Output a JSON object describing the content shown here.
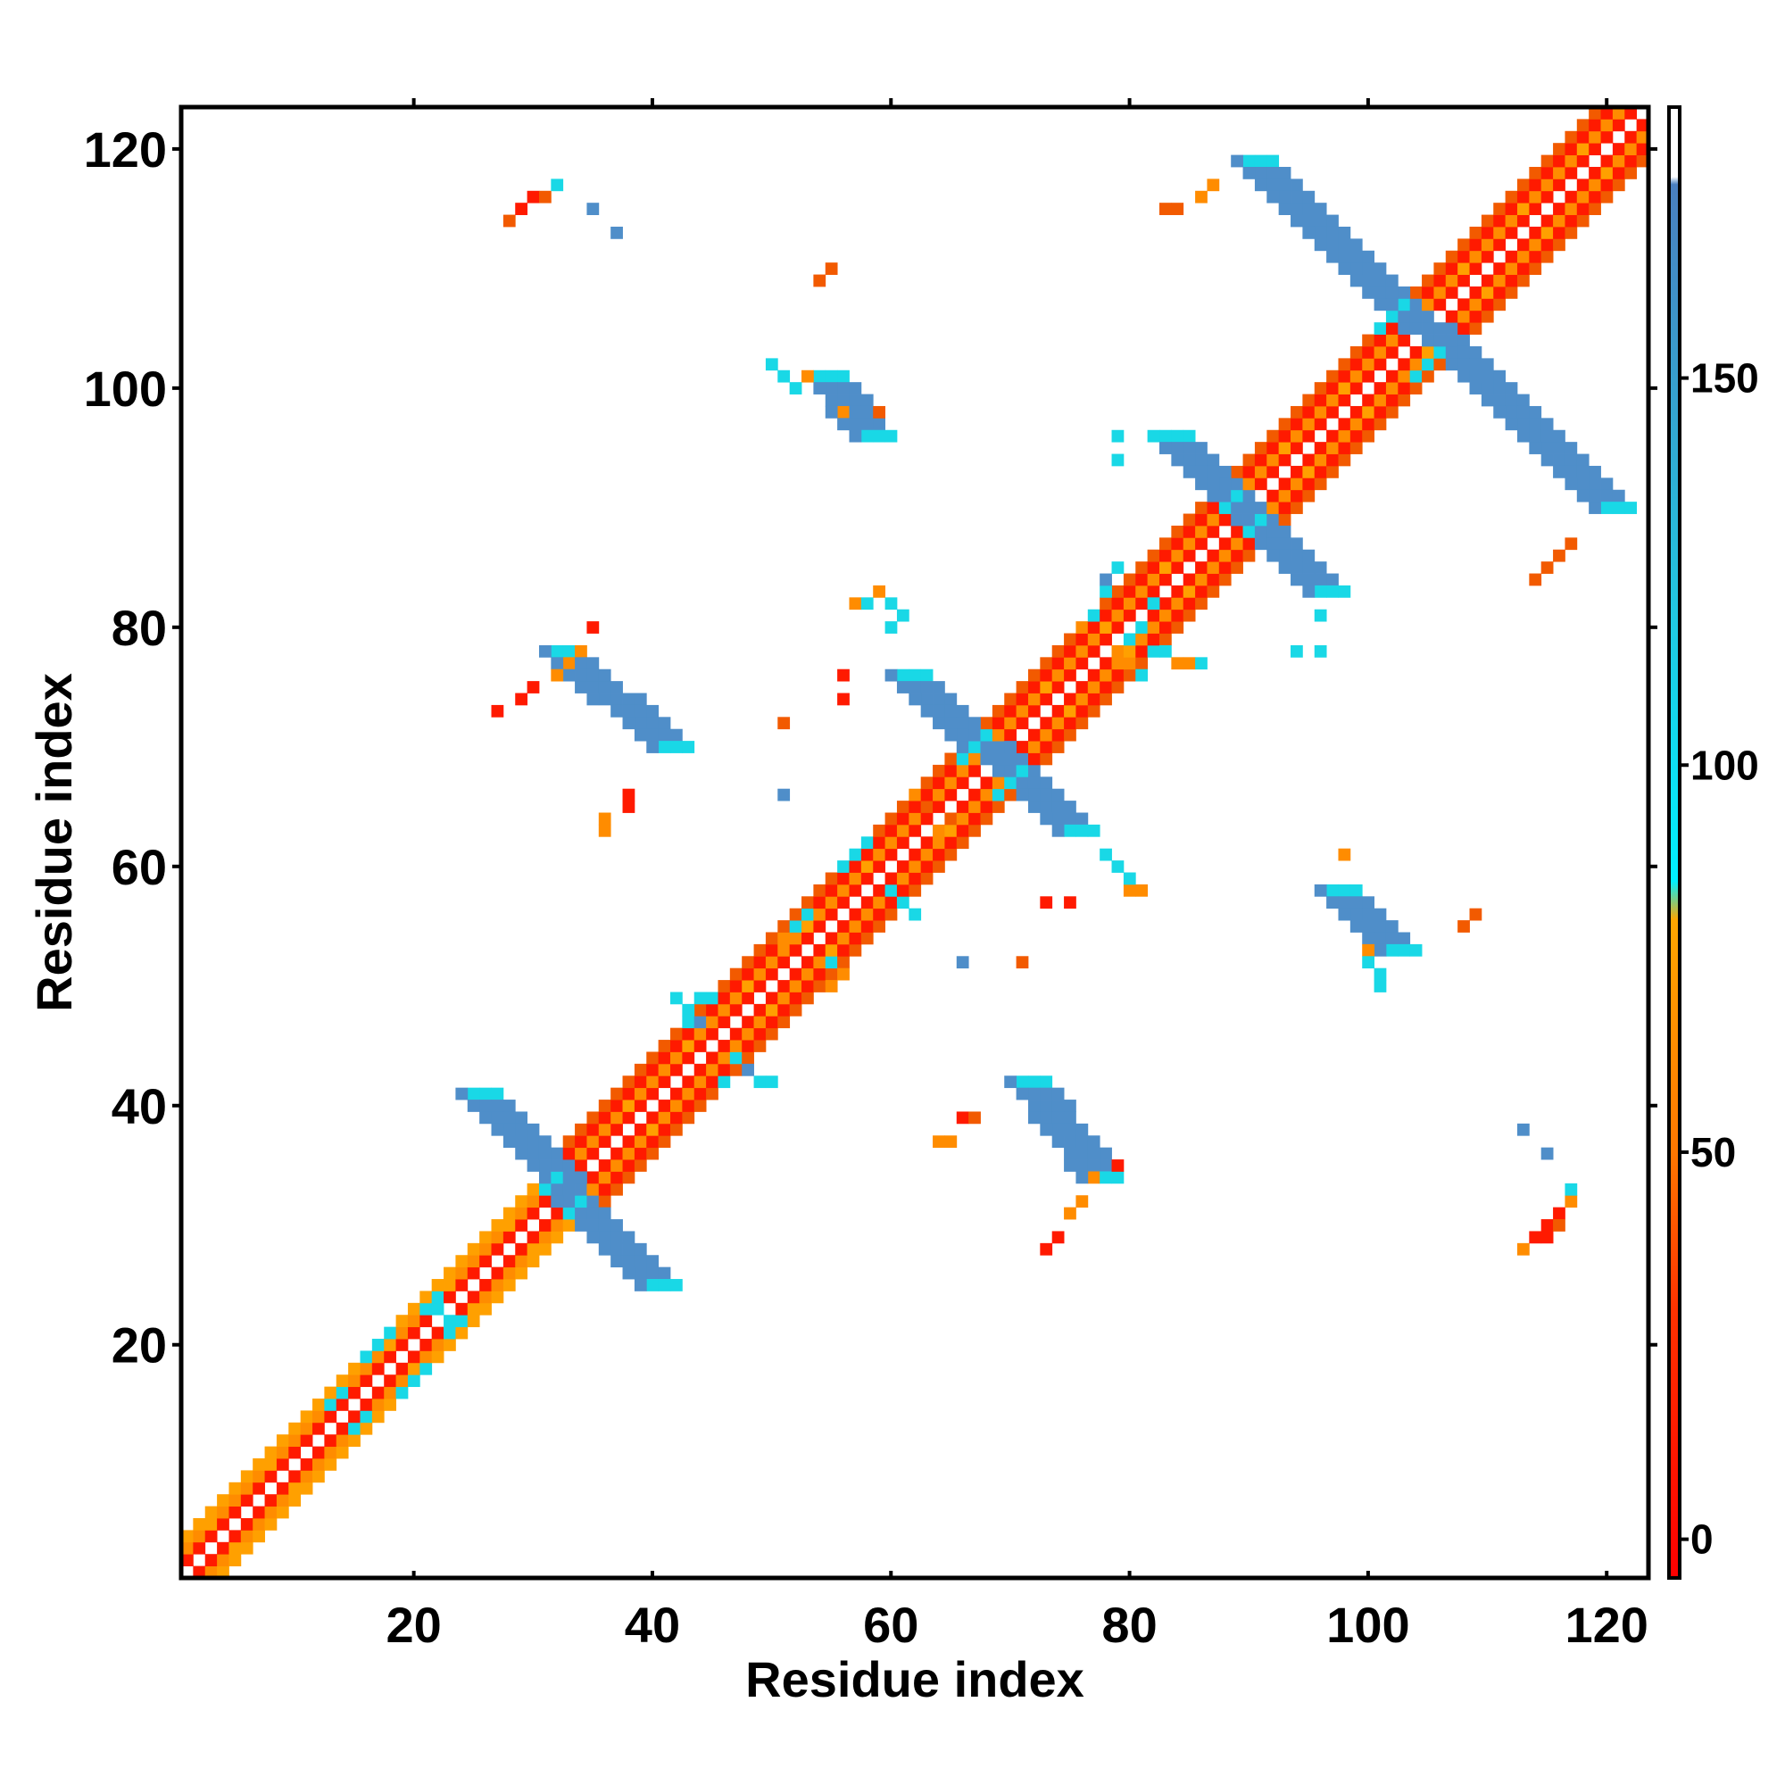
{
  "chart_data": {
    "type": "heatmap",
    "title": "",
    "xlabel": "Residue index",
    "ylabel": "Residue index",
    "xlim": [
      1,
      123
    ],
    "ylim": [
      1,
      123
    ],
    "x_ticks": [
      20,
      40,
      60,
      80,
      100,
      120
    ],
    "y_ticks": [
      20,
      40,
      60,
      80,
      100,
      120
    ],
    "grid": false,
    "colorbar": {
      "range": [
        -5,
        185
      ],
      "ticks": [
        0,
        50,
        100,
        150
      ],
      "bands": [
        {
          "from": -5,
          "to": 30,
          "color": "#ff1a00"
        },
        {
          "from": 30,
          "to": 80,
          "color": "#ff8c00"
        },
        {
          "from": 80,
          "to": 180,
          "color": "#19d8e6"
        },
        {
          "from": 180,
          "to": 185,
          "color": "#ffffff"
        }
      ],
      "gradient_stops": [
        {
          "value": -5,
          "color": "#ff0000"
        },
        {
          "value": 30,
          "color": "#ff3300"
        },
        {
          "value": 50,
          "color": "#ff7700"
        },
        {
          "value": 80,
          "color": "#ffa600"
        },
        {
          "value": 85,
          "color": "#00f0ff"
        },
        {
          "value": 120,
          "color": "#22c6e0"
        },
        {
          "value": 175,
          "color": "#4a7fbf"
        },
        {
          "value": 176,
          "color": "#ffffff"
        },
        {
          "value": 185,
          "color": "#ffffff"
        }
      ]
    },
    "colors": {
      "red": "#ff1a00",
      "dark_orange": "#f25a00",
      "orange": "#ff8c00",
      "amber": "#ffa000",
      "cyan": "#19d8e6",
      "steel_blue": "#4f8ec9"
    },
    "diagonal_bands": [
      {
        "i_from": 1,
        "i_to": 30,
        "offsets": [
          [
            1,
            "red"
          ],
          [
            2,
            "orange"
          ],
          [
            3,
            "amber"
          ]
        ]
      },
      {
        "i_from": 31,
        "i_to": 123,
        "offsets": [
          [
            1,
            "red"
          ],
          [
            2,
            "orange"
          ],
          [
            3,
            "red"
          ],
          [
            4,
            "dark_orange"
          ]
        ]
      }
    ],
    "antidiagonal_strips": [
      {
        "x_from": 25,
        "y_from": 41,
        "x_to": 40,
        "y_to": 25,
        "width": 3,
        "color": "steel_blue",
        "edge": "cyan"
      },
      {
        "x_from": 32,
        "y_from": 78,
        "x_to": 41,
        "y_to": 70,
        "width": 3,
        "color": "steel_blue",
        "edge": "cyan"
      },
      {
        "x_from": 71,
        "y_from": 42,
        "x_to": 77,
        "y_to": 34,
        "width": 3,
        "color": "steel_blue",
        "edge": "cyan"
      },
      {
        "x_from": 54,
        "y_from": 101,
        "x_to": 58,
        "y_to": 96,
        "width": 3,
        "color": "steel_blue",
        "edge": "cyan"
      },
      {
        "x_from": 61,
        "y_from": 76,
        "x_to": 75,
        "y_to": 63,
        "width": 3,
        "color": "steel_blue",
        "edge": "cyan"
      },
      {
        "x_from": 83,
        "y_from": 96,
        "x_to": 96,
        "y_to": 83,
        "width": 3,
        "color": "steel_blue",
        "edge": "cyan"
      },
      {
        "x_from": 90,
        "y_from": 119,
        "x_to": 120,
        "y_to": 90,
        "width": 3,
        "color": "steel_blue",
        "edge": "cyan"
      },
      {
        "x_from": 97,
        "y_from": 58,
        "x_to": 102,
        "y_to": 53,
        "width": 3,
        "color": "steel_blue",
        "edge": "cyan"
      }
    ],
    "cells": [
      [
        28,
        114,
        "dark_orange"
      ],
      [
        29,
        115,
        "red"
      ],
      [
        30,
        116,
        "red"
      ],
      [
        31,
        116,
        "dark_orange"
      ],
      [
        32,
        117,
        "cyan"
      ],
      [
        35,
        115,
        "steel_blue"
      ],
      [
        37,
        113,
        "steel_blue"
      ],
      [
        55,
        110,
        "dark_orange"
      ],
      [
        54,
        109,
        "dark_orange"
      ],
      [
        50,
        102,
        "cyan"
      ],
      [
        51,
        101,
        "cyan"
      ],
      [
        52,
        100,
        "cyan"
      ],
      [
        53,
        101,
        "orange"
      ],
      [
        59,
        98,
        "dark_orange"
      ],
      [
        56,
        98,
        "orange"
      ],
      [
        79,
        96,
        "cyan"
      ],
      [
        79,
        94,
        "cyan"
      ],
      [
        82,
        96,
        "cyan"
      ],
      [
        83,
        115,
        "dark_orange"
      ],
      [
        84,
        115,
        "dark_orange"
      ],
      [
        86,
        116,
        "orange"
      ],
      [
        87,
        117,
        "orange"
      ],
      [
        114,
        84,
        "dark_orange"
      ],
      [
        115,
        85,
        "dark_orange"
      ],
      [
        116,
        86,
        "dark_orange"
      ],
      [
        117,
        87,
        "dark_orange"
      ],
      [
        94,
        78,
        "cyan"
      ],
      [
        96,
        78,
        "cyan"
      ],
      [
        96,
        81,
        "cyan"
      ],
      [
        34,
        78,
        "orange"
      ],
      [
        33,
        77,
        "orange"
      ],
      [
        32,
        76,
        "orange"
      ],
      [
        35,
        80,
        "red"
      ],
      [
        27,
        73,
        "red"
      ],
      [
        29,
        74,
        "red"
      ],
      [
        30,
        75,
        "red"
      ],
      [
        57,
        82,
        "orange"
      ],
      [
        58,
        82,
        "cyan"
      ],
      [
        59,
        83,
        "orange"
      ],
      [
        60,
        82,
        "cyan"
      ],
      [
        61,
        81,
        "cyan"
      ],
      [
        60,
        80,
        "cyan"
      ],
      [
        56,
        76,
        "red"
      ],
      [
        56,
        74,
        "red"
      ],
      [
        51,
        72,
        "dark_orange"
      ],
      [
        51,
        66,
        "steel_blue"
      ],
      [
        38,
        66,
        "red"
      ],
      [
        38,
        65,
        "red"
      ],
      [
        36,
        64,
        "orange"
      ],
      [
        36,
        63,
        "orange"
      ],
      [
        73,
        57,
        "red"
      ],
      [
        75,
        57,
        "red"
      ],
      [
        66,
        52,
        "steel_blue"
      ],
      [
        71,
        52,
        "dark_orange"
      ],
      [
        78,
        61,
        "cyan"
      ],
      [
        79,
        60,
        "cyan"
      ],
      [
        80,
        58,
        "orange"
      ],
      [
        81,
        58,
        "orange"
      ],
      [
        80,
        59,
        "cyan"
      ],
      [
        98,
        61,
        "orange"
      ],
      [
        100,
        53,
        "orange"
      ],
      [
        100,
        52,
        "cyan"
      ],
      [
        101,
        51,
        "cyan"
      ],
      [
        101,
        50,
        "cyan"
      ],
      [
        108,
        55,
        "dark_orange"
      ],
      [
        109,
        56,
        "dark_orange"
      ],
      [
        64,
        37,
        "orange"
      ],
      [
        65,
        37,
        "orange"
      ],
      [
        66,
        39,
        "red"
      ],
      [
        67,
        39,
        "dark_orange"
      ],
      [
        79,
        35,
        "red"
      ],
      [
        77,
        34,
        "orange"
      ],
      [
        76,
        32,
        "orange"
      ],
      [
        75,
        31,
        "orange"
      ],
      [
        74,
        29,
        "red"
      ],
      [
        73,
        28,
        "red"
      ],
      [
        113,
        38,
        "steel_blue"
      ],
      [
        115,
        36,
        "steel_blue"
      ],
      [
        113,
        28,
        "orange"
      ],
      [
        114,
        29,
        "red"
      ],
      [
        115,
        30,
        "red"
      ],
      [
        116,
        31,
        "red"
      ],
      [
        117,
        32,
        "orange"
      ],
      [
        117,
        33,
        "cyan"
      ],
      [
        115,
        29,
        "red"
      ],
      [
        116,
        30,
        "dark_orange"
      ],
      [
        45,
        43,
        "orange"
      ],
      [
        46,
        42,
        "cyan"
      ],
      [
        47,
        44,
        "cyan"
      ],
      [
        48,
        43,
        "steel_blue"
      ],
      [
        49,
        42,
        "cyan"
      ],
      [
        50,
        42,
        "cyan"
      ],
      [
        43,
        47,
        "cyan"
      ],
      [
        43,
        48,
        "cyan"
      ],
      [
        44,
        49,
        "cyan"
      ],
      [
        45,
        49,
        "cyan"
      ],
      [
        44,
        47,
        "steel_blue"
      ],
      [
        42,
        49,
        "cyan"
      ],
      [
        53,
        56,
        "cyan"
      ],
      [
        52,
        55,
        "cyan"
      ],
      [
        51,
        54,
        "orange"
      ],
      [
        55,
        52,
        "cyan"
      ],
      [
        56,
        51,
        "orange"
      ],
      [
        55,
        50,
        "orange"
      ],
      [
        58,
        62,
        "cyan"
      ],
      [
        57,
        61,
        "cyan"
      ],
      [
        56,
        60,
        "cyan"
      ],
      [
        61,
        57,
        "cyan"
      ],
      [
        62,
        56,
        "cyan"
      ],
      [
        60,
        58,
        "cyan"
      ],
      [
        64,
        63,
        "orange"
      ],
      [
        65,
        64,
        "dark_orange"
      ],
      [
        62,
        66,
        "orange"
      ],
      [
        63,
        65,
        "dark_orange"
      ],
      [
        76,
        80,
        "orange"
      ],
      [
        77,
        81,
        "cyan"
      ],
      [
        78,
        83,
        "cyan"
      ],
      [
        78,
        84,
        "steel_blue"
      ],
      [
        79,
        85,
        "cyan"
      ],
      [
        81,
        76,
        "cyan"
      ],
      [
        82,
        78,
        "cyan"
      ],
      [
        83,
        78,
        "cyan"
      ],
      [
        84,
        77,
        "orange"
      ],
      [
        85,
        77,
        "orange"
      ],
      [
        86,
        77,
        "cyan"
      ],
      [
        80,
        79,
        "cyan"
      ],
      [
        81,
        80,
        "cyan"
      ],
      [
        82,
        82,
        "cyan"
      ],
      [
        80,
        77,
        "orange"
      ],
      [
        79,
        78,
        "orange"
      ],
      [
        101,
        105,
        "cyan"
      ],
      [
        102,
        106,
        "cyan"
      ],
      [
        103,
        107,
        "cyan"
      ],
      [
        104,
        101,
        "cyan"
      ],
      [
        105,
        102,
        "cyan"
      ],
      [
        106,
        103,
        "cyan"
      ],
      [
        88,
        90,
        "cyan"
      ],
      [
        89,
        91,
        "cyan"
      ],
      [
        90,
        88,
        "cyan"
      ],
      [
        91,
        89,
        "cyan"
      ],
      [
        66,
        69,
        "cyan"
      ],
      [
        67,
        70,
        "cyan"
      ],
      [
        68,
        71,
        "cyan"
      ],
      [
        69,
        66,
        "cyan"
      ],
      [
        70,
        67,
        "cyan"
      ],
      [
        71,
        68,
        "cyan"
      ],
      [
        31,
        33,
        "cyan"
      ],
      [
        32,
        34,
        "cyan"
      ],
      [
        33,
        31,
        "cyan"
      ],
      [
        34,
        32,
        "cyan"
      ],
      [
        35,
        33,
        "orange"
      ],
      [
        16,
        19,
        "cyan"
      ],
      [
        17,
        20,
        "cyan"
      ],
      [
        18,
        21,
        "cyan"
      ],
      [
        19,
        16,
        "cyan"
      ],
      [
        20,
        17,
        "cyan"
      ],
      [
        21,
        18,
        "cyan"
      ],
      [
        21,
        23,
        "cyan"
      ],
      [
        22,
        24,
        "cyan"
      ],
      [
        23,
        21,
        "cyan"
      ],
      [
        24,
        22,
        "cyan"
      ],
      [
        22,
        23,
        "cyan"
      ],
      [
        23,
        22,
        "cyan"
      ],
      [
        13,
        15,
        "cyan"
      ],
      [
        14,
        16,
        "cyan"
      ],
      [
        15,
        13,
        "cyan"
      ],
      [
        16,
        14,
        "cyan"
      ]
    ]
  }
}
